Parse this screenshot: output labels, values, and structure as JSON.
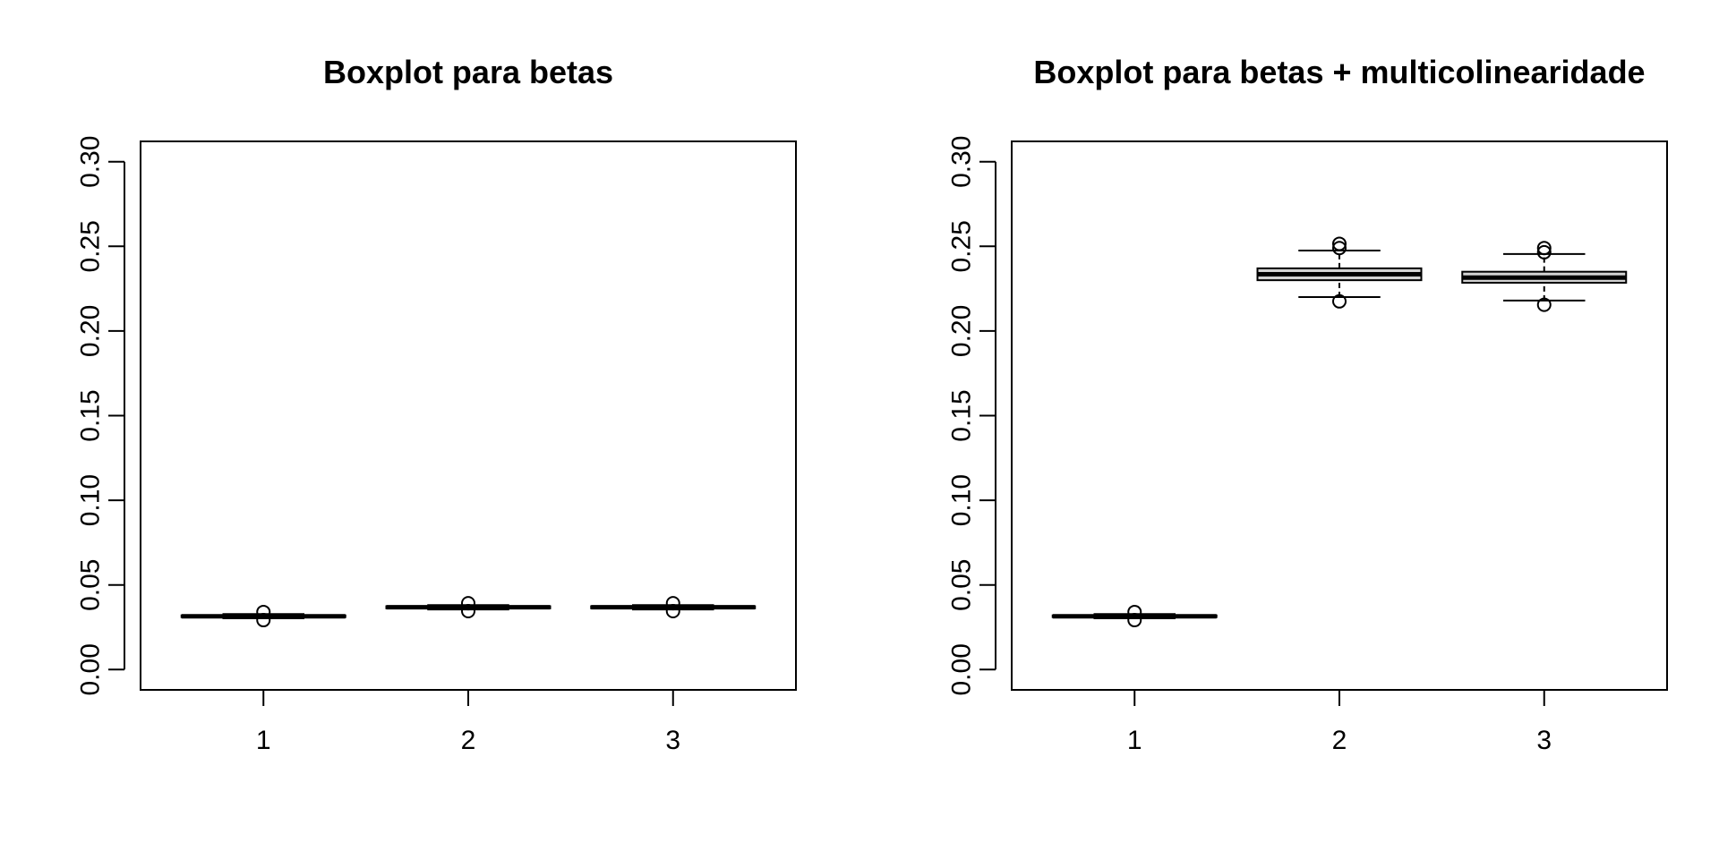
{
  "chart_data": [
    {
      "type": "boxplot",
      "title": "Boxplot para betas",
      "xlabel": "",
      "ylabel": "",
      "ylim": [
        -0.012,
        0.312
      ],
      "yticks": [
        0.0,
        0.05,
        0.1,
        0.15,
        0.2,
        0.25,
        0.3
      ],
      "ytick_labels": [
        "0.00",
        "0.05",
        "0.10",
        "0.15",
        "0.20",
        "0.25",
        "0.30"
      ],
      "categories": [
        "1",
        "2",
        "3"
      ],
      "grid": false,
      "colors": {
        "box_fill": "#d3d3d3",
        "stroke": "#000000"
      },
      "boxes": [
        {
          "category": "1",
          "whisker_low": 0.0303,
          "q1": 0.031,
          "median": 0.0315,
          "q3": 0.032,
          "whisker_high": 0.0328,
          "outliers": [
            0.0292,
            0.034
          ]
        },
        {
          "category": "2",
          "whisker_low": 0.0355,
          "q1": 0.0362,
          "median": 0.0368,
          "q3": 0.0374,
          "whisker_high": 0.0381,
          "outliers": [
            0.0345,
            0.0392
          ]
        },
        {
          "category": "3",
          "whisker_low": 0.0355,
          "q1": 0.0362,
          "median": 0.0368,
          "q3": 0.0374,
          "whisker_high": 0.0381,
          "outliers": [
            0.0345,
            0.0392
          ]
        }
      ]
    },
    {
      "type": "boxplot",
      "title": "Boxplot para betas + multicolinearidade",
      "xlabel": "",
      "ylabel": "",
      "ylim": [
        -0.012,
        0.312
      ],
      "yticks": [
        0.0,
        0.05,
        0.1,
        0.15,
        0.2,
        0.25,
        0.3
      ],
      "ytick_labels": [
        "0.00",
        "0.05",
        "0.10",
        "0.15",
        "0.20",
        "0.25",
        "0.30"
      ],
      "categories": [
        "1",
        "2",
        "3"
      ],
      "grid": false,
      "colors": {
        "box_fill": "#d3d3d3",
        "stroke": "#000000"
      },
      "boxes": [
        {
          "category": "1",
          "whisker_low": 0.0303,
          "q1": 0.031,
          "median": 0.0315,
          "q3": 0.032,
          "whisker_high": 0.0328,
          "outliers": [
            0.0292,
            0.034
          ]
        },
        {
          "category": "2",
          "whisker_low": 0.22,
          "q1": 0.23,
          "median": 0.2335,
          "q3": 0.237,
          "whisker_high": 0.2475,
          "outliers": [
            0.2175,
            0.249,
            0.2515
          ]
        },
        {
          "category": "3",
          "whisker_low": 0.218,
          "q1": 0.2285,
          "median": 0.2315,
          "q3": 0.235,
          "whisker_high": 0.2455,
          "outliers": [
            0.2155,
            0.2465,
            0.249
          ]
        }
      ]
    }
  ]
}
